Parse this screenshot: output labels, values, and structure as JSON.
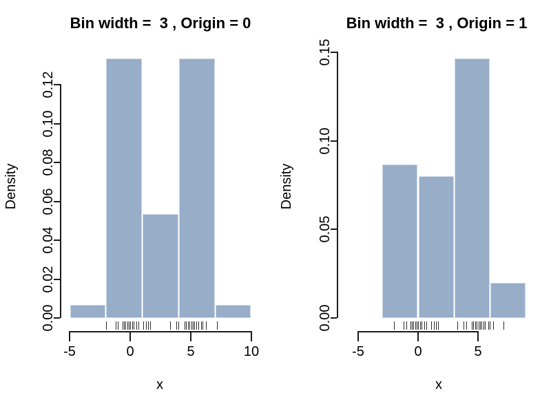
{
  "figure": {
    "background": "#ffffff",
    "axis_color": "#1a1a1a",
    "text_color": "#000000"
  },
  "chart_data": [
    {
      "type": "bar",
      "subtype": "histogram-with-rug",
      "title": "Bin width =  3 , Origin = 0",
      "xlabel": "x",
      "ylabel": "Density",
      "bin_width": 3,
      "origin": 0,
      "bin_edges": [
        -5,
        -2,
        1,
        4,
        7,
        10
      ],
      "densities": [
        0.00667,
        0.13333,
        0.05333,
        0.13333,
        0.00667
      ],
      "x_ticks": [
        -5,
        0,
        5,
        10
      ],
      "y_ticks": [
        "0.00",
        "0.02",
        "0.04",
        "0.06",
        "0.08",
        "0.10",
        "0.12"
      ],
      "xlim": [
        -5.6,
        10.6
      ],
      "ylim": [
        0,
        0.13333
      ],
      "grid": false,
      "legend": "none",
      "bar_fill": "#97adc8",
      "bar_border": "#cdd9e5",
      "rug_x": [
        -2.0,
        -1.2,
        -1.0,
        -0.65,
        -0.5,
        -0.4,
        -0.25,
        -0.1,
        0.0,
        0.15,
        0.3,
        0.5,
        0.7,
        1.1,
        1.3,
        1.5,
        1.65,
        3.3,
        3.8,
        4.0,
        4.5,
        4.6,
        4.75,
        4.9,
        5.05,
        5.15,
        5.3,
        5.45,
        5.6,
        5.85,
        5.95,
        6.25,
        7.15
      ]
    },
    {
      "type": "bar",
      "subtype": "histogram-with-rug",
      "title": "Bin width =  3 , Origin = 1",
      "xlabel": "x",
      "ylabel": "Density",
      "bin_width": 3,
      "origin": 1,
      "bin_edges": [
        -3,
        0,
        3,
        6,
        9
      ],
      "densities": [
        0.08667,
        0.08,
        0.14667,
        0.02
      ],
      "x_ticks": [
        -5,
        0,
        5
      ],
      "y_ticks": [
        "0.00",
        "0.05",
        "0.10",
        "0.15"
      ],
      "xlim": [
        -5.6,
        9.6
      ],
      "ylim": [
        0,
        0.14667
      ],
      "grid": false,
      "legend": "none",
      "bar_fill": "#97adc8",
      "bar_border": "#cdd9e5",
      "rug_x": [
        -2.0,
        -1.2,
        -1.0,
        -0.65,
        -0.5,
        -0.4,
        -0.25,
        -0.1,
        0.0,
        0.15,
        0.3,
        0.5,
        0.7,
        1.1,
        1.3,
        1.5,
        1.65,
        3.3,
        3.8,
        4.0,
        4.5,
        4.6,
        4.75,
        4.9,
        5.05,
        5.15,
        5.3,
        5.45,
        5.6,
        5.85,
        5.95,
        6.25,
        7.15
      ]
    }
  ]
}
